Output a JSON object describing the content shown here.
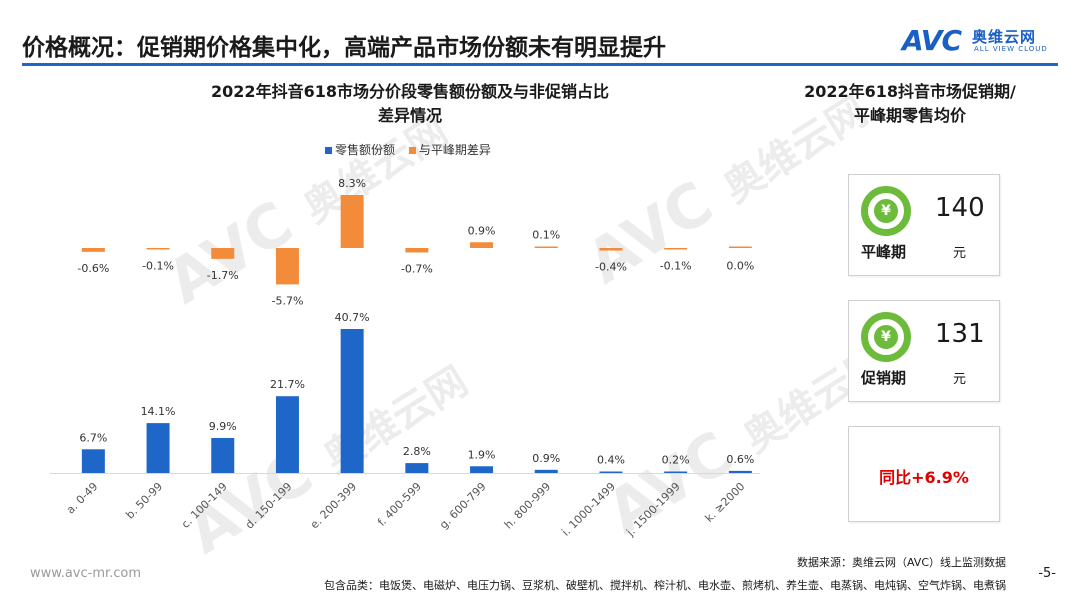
{
  "header": {
    "title": "价格概况：促销期价格集中化，高端产品市场份额未有明显提升",
    "logo_mark": "AVC",
    "logo_cn": "奥维云网",
    "logo_en": "ALL VIEW CLOUD"
  },
  "watermark": {
    "mark": "AVC",
    "cn": "奥维云网",
    "en": "ALL VIEW CLOUD"
  },
  "chart_data": {
    "type": "bar",
    "title_line1": "2022年抖音618市场分价段零售额份额及与非促销占比",
    "title_line2": "差异情况",
    "categories": [
      "a. 0-49",
      "b. 50-99",
      "c. 100-149",
      "d. 150-199",
      "e. 200-399",
      "f. 400-599",
      "g. 600-799",
      "h. 800-999",
      "i. 1000-1499",
      "j. 1500-1999",
      "k. ≥2000"
    ],
    "series": [
      {
        "name": "零售额份额",
        "color": "#1f66c9",
        "values": [
          6.7,
          14.1,
          9.9,
          21.7,
          40.7,
          2.8,
          1.9,
          0.9,
          0.4,
          0.2,
          0.6
        ],
        "labels": [
          "6.7%",
          "14.1%",
          "9.9%",
          "21.7%",
          "40.7%",
          "2.8%",
          "1.9%",
          "0.9%",
          "0.4%",
          "0.2%",
          "0.6%"
        ]
      },
      {
        "name": "与平峰期差异",
        "color": "#f28c3a",
        "values": [
          -0.6,
          -0.1,
          -1.7,
          -5.7,
          8.3,
          -0.7,
          0.9,
          0.1,
          -0.4,
          -0.1,
          0.0
        ],
        "labels": [
          "-0.6%",
          "-0.1%",
          "-1.7%",
          "-5.7%",
          "8.3%",
          "-0.7%",
          "0.9%",
          "0.1%",
          "-0.4%",
          "-0.1%",
          "0.0%"
        ]
      }
    ],
    "legend_position": "top",
    "grid": false
  },
  "right_panel": {
    "title_line1": "2022年618抖音市场促销期/",
    "title_line2": "平峰期零售均价",
    "cards": [
      {
        "icon": "yen-icon",
        "icon_glyph": "¥",
        "label": "平峰期",
        "value": "140",
        "unit": "元"
      },
      {
        "icon": "yen-icon",
        "icon_glyph": "¥",
        "label": "促销期",
        "value": "131",
        "unit": "元"
      }
    ],
    "yoy": "同比+6.9%",
    "accent_color": "#6dbb3a",
    "yoy_color": "#e00000"
  },
  "footer": {
    "source": "数据来源：奥维云网（AVC）线上监测数据",
    "categories_note": "包含品类：电饭煲、电磁炉、电压力锅、豆浆机、破壁机、搅拌机、榨汁机、电水壶、煎烤机、养生壶、电蒸锅、电炖锅、空气炸锅、电煮锅",
    "site": "www.avc-mr.com",
    "page": "-5-"
  }
}
